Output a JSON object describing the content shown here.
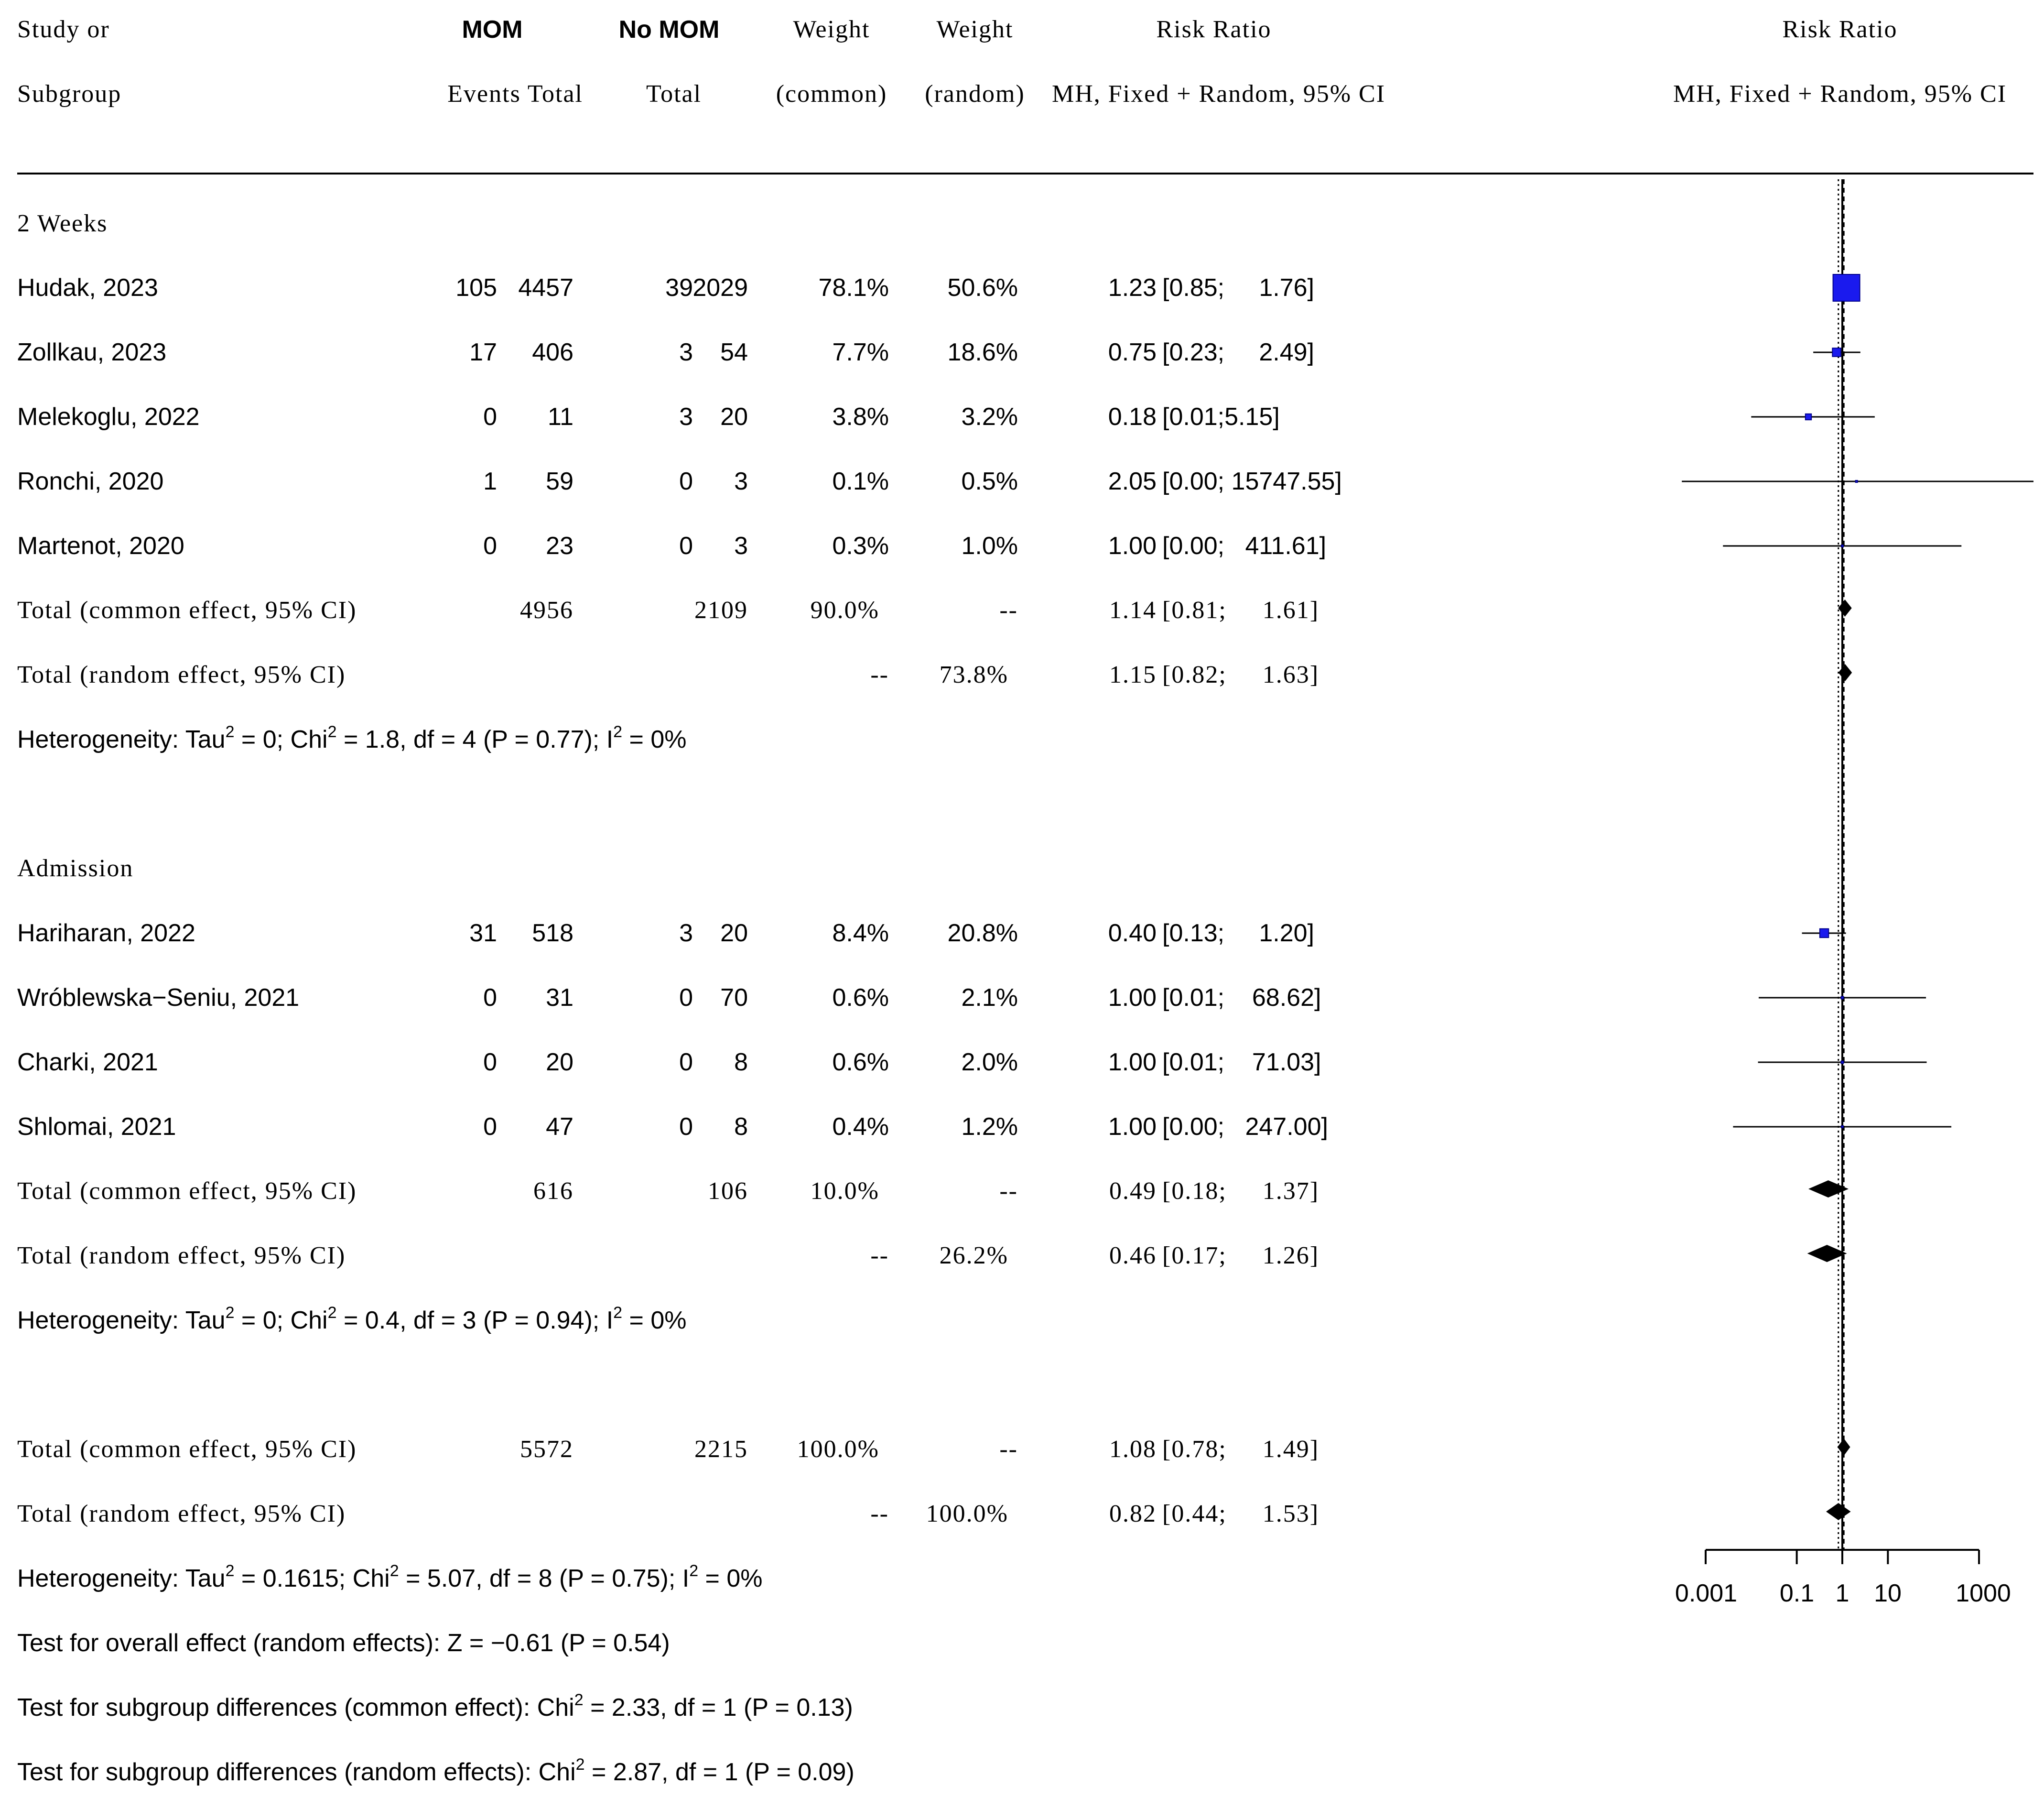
{
  "header": {
    "study_1": "Study or",
    "study_2": "Subgroup",
    "mom": "MOM",
    "mom_cols": "Events Total",
    "nomom": "No MOM",
    "nomom_cols": "Total",
    "wc_1": "Weight",
    "wc_2": "(common)",
    "wr_1": "Weight",
    "wr_2": "(random)",
    "rr_1": "Risk Ratio",
    "rr_2": "MH, Fixed + Random, 95% CI",
    "plot_1": "Risk Ratio",
    "plot_2": "MH, Fixed + Random, 95% CI"
  },
  "subgroups": [
    {
      "name": "2 Weeks",
      "studies": [
        {
          "name": "Hudak, 2023",
          "e": "105",
          "n1": "4457",
          "e2": "39",
          "n2": "2029",
          "wc": "78.1%",
          "wr": "50.6%",
          "rr": "1.23",
          "ci": "[0.85;     1.76]"
        },
        {
          "name": "Zollkau, 2023",
          "e": "17",
          "n1": "406",
          "e2": "3",
          "n2": "54",
          "wc": "7.7%",
          "wr": "18.6%",
          "rr": "0.75",
          "ci": "[0.23;     2.49]"
        },
        {
          "name": "Melekoglu, 2022",
          "e": "0",
          "n1": "11",
          "e2": "3",
          "n2": "20",
          "wc": "3.8%",
          "wr": "3.2%",
          "rr": "0.18",
          "ci": "[0.01;5.15]"
        },
        {
          "name": "Ronchi, 2020",
          "e": "1",
          "n1": "59",
          "e2": "0",
          "n2": "3",
          "wc": "0.1%",
          "wr": "0.5%",
          "rr": "2.05",
          "ci": "[0.00; 15747.55]"
        },
        {
          "name": "Martenot, 2020",
          "e": "0",
          "n1": "23",
          "e2": "0",
          "n2": "3",
          "wc": "0.3%",
          "wr": "1.0%",
          "rr": "1.00",
          "ci": "[0.00;   411.61]"
        }
      ],
      "common": {
        "label": "Total (common effect, 95% CI)",
        "n1": "4956",
        "n2": "2109",
        "wc": "90.0%",
        "wr": "--",
        "rr": "1.14",
        "ci": "[0.81;     1.61]"
      },
      "random": {
        "label": "Total (random effect, 95% CI)",
        "wc": "--",
        "wr": "73.8%",
        "rr": "1.15",
        "ci": "[0.82;     1.63]"
      },
      "het": {
        "a": "Heterogeneity: Tau",
        "b": " = 0; Chi",
        "c": " = 1.8, df = 4 (P = 0.77); I",
        "d": " = 0%"
      }
    },
    {
      "name": "Admission",
      "studies": [
        {
          "name": "Hariharan, 2022",
          "e": "31",
          "n1": "518",
          "e2": "3",
          "n2": "20",
          "wc": "8.4%",
          "wr": "20.8%",
          "rr": "0.40",
          "ci": "[0.13;     1.20]"
        },
        {
          "name": "Wróblewska−Seniu, 2021",
          "e": "0",
          "n1": "31",
          "e2": "0",
          "n2": "70",
          "wc": "0.6%",
          "wr": "2.1%",
          "rr": "1.00",
          "ci": "[0.01;    68.62]"
        },
        {
          "name": "Charki, 2021",
          "e": "0",
          "n1": "20",
          "e2": "0",
          "n2": "8",
          "wc": "0.6%",
          "wr": "2.0%",
          "rr": "1.00",
          "ci": "[0.01;    71.03]"
        },
        {
          "name": "Shlomai, 2021",
          "e": "0",
          "n1": "47",
          "e2": "0",
          "n2": "8",
          "wc": "0.4%",
          "wr": "1.2%",
          "rr": "1.00",
          "ci": "[0.00;   247.00]"
        }
      ],
      "common": {
        "label": "Total (common effect, 95% CI)",
        "n1": "616",
        "n2": "106",
        "wc": "10.0%",
        "wr": "--",
        "rr": "0.49",
        "ci": "[0.18;     1.37]"
      },
      "random": {
        "label": "Total (random effect, 95% CI)",
        "wc": "--",
        "wr": "26.2%",
        "rr": "0.46",
        "ci": "[0.17;     1.26]"
      },
      "het": {
        "a": "Heterogeneity: Tau",
        "b": " = 0; Chi",
        "c": " = 0.4, df = 3 (P = 0.94); I",
        "d": " = 0%"
      }
    }
  ],
  "overall": {
    "common": {
      "label": "Total (common effect, 95% CI)",
      "n1": "5572",
      "n2": "2215",
      "wc": "100.0%",
      "wr": "--",
      "rr": "1.08",
      "ci": "[0.78;     1.49]"
    },
    "random": {
      "label": "Total (random effect, 95% CI)",
      "wc": "--",
      "wr": "100.0%",
      "rr": "0.82",
      "ci": "[0.44;     1.53]"
    },
    "het": {
      "a": "Heterogeneity: Tau",
      "b": " = 0.1615; Chi",
      "c": " = 5.07, df = 8 (P = 0.75); I",
      "d": " = 0%"
    },
    "test_overall": "Test for overall effect (random effects): Z = −0.61 (P = 0.54)",
    "sub_common_a": "Test for subgroup differences (common effect): Chi",
    "sub_common_b": " = 2.33, df = 1 (P = 0.13)",
    "sub_random_a": "Test for subgroup differences (random effects): Chi",
    "sub_random_b": " = 2.87, df = 1 (P = 0.09)",
    "sup2": "2"
  },
  "chart_data": {
    "type": "forest",
    "title": "Risk Ratio (MH, Fixed + Random, 95% CI)",
    "scale": "log10",
    "xlim": [
      0.001,
      1000
    ],
    "ticks": [
      0.001,
      0.1,
      1,
      10,
      1000
    ],
    "tick_labels": [
      "0.001",
      "0.1",
      "1",
      "10",
      "1000"
    ],
    "reference_line": 1,
    "common_effect_line": 1.08,
    "random_effect_line": 0.82,
    "studies": [
      {
        "label": "Hudak, 2023",
        "rr": 1.23,
        "lo": 0.85,
        "hi": 1.76,
        "weight": 78.1
      },
      {
        "label": "Zollkau, 2023",
        "rr": 0.75,
        "lo": 0.23,
        "hi": 2.49,
        "weight": 7.7
      },
      {
        "label": "Melekoglu, 2022",
        "rr": 0.18,
        "lo": 0.01,
        "hi": 5.15,
        "weight": 3.8
      },
      {
        "label": "Ronchi, 2020",
        "rr": 2.05,
        "lo": 0.0003,
        "hi": 15747.55,
        "weight": 0.1
      },
      {
        "label": "Martenot, 2020",
        "rr": 1.0,
        "lo": 0.0024,
        "hi": 411.61,
        "weight": 0.3
      },
      {
        "label": "Hariharan, 2022",
        "rr": 0.4,
        "lo": 0.13,
        "hi": 1.2,
        "weight": 8.4
      },
      {
        "label": "Wróblewska−Seniu, 2021",
        "rr": 1.0,
        "lo": 0.0146,
        "hi": 68.62,
        "weight": 0.6
      },
      {
        "label": "Charki, 2021",
        "rr": 1.0,
        "lo": 0.0141,
        "hi": 71.03,
        "weight": 0.6
      },
      {
        "label": "Shlomai, 2021",
        "rr": 1.0,
        "lo": 0.004,
        "hi": 247.0,
        "weight": 0.4
      }
    ],
    "pooled": [
      {
        "label": "2 Weeks common",
        "rr": 1.14,
        "lo": 0.81,
        "hi": 1.61
      },
      {
        "label": "2 Weeks random",
        "rr": 1.15,
        "lo": 0.82,
        "hi": 1.63
      },
      {
        "label": "Admission common",
        "rr": 0.49,
        "lo": 0.18,
        "hi": 1.37
      },
      {
        "label": "Admission random",
        "rr": 0.46,
        "lo": 0.17,
        "hi": 1.26
      },
      {
        "label": "Overall common",
        "rr": 1.08,
        "lo": 0.78,
        "hi": 1.49
      },
      {
        "label": "Overall random",
        "rr": 0.82,
        "lo": 0.44,
        "hi": 1.53
      }
    ],
    "colors": {
      "box": "#1a1aee",
      "box_edge": "#00008b",
      "diamond": "#000000",
      "lines": "#000000"
    }
  }
}
